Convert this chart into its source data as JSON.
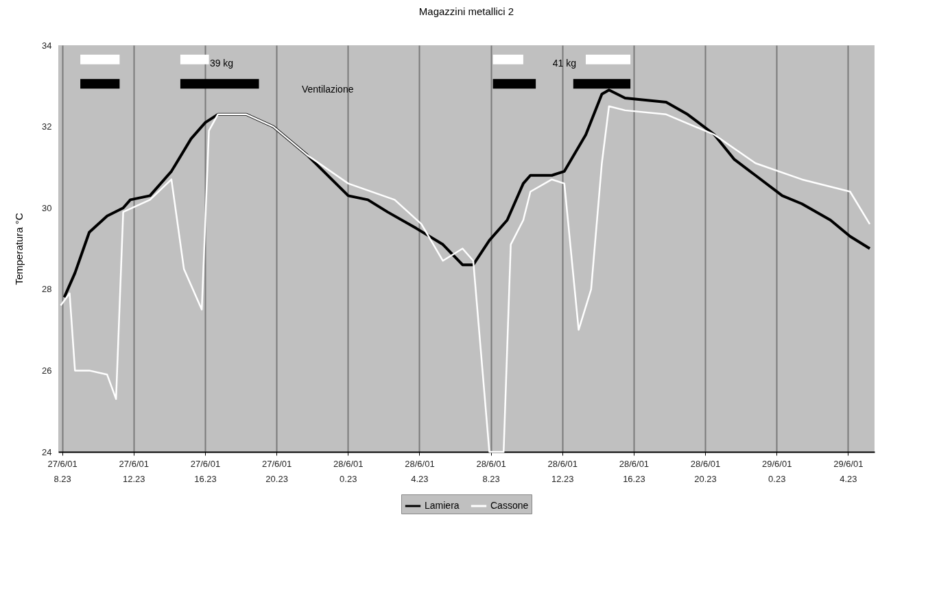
{
  "chart_data": {
    "type": "line",
    "title": "Magazzini metallici 2",
    "ylabel": "Temperatura °C",
    "xlim": [
      "--06-27T08:10",
      "--06-29T05:52"
    ],
    "ylim": [
      24,
      34
    ],
    "yticks": [
      24,
      26,
      28,
      30,
      32,
      34
    ],
    "xticks": [
      {
        "value": "2001-06-27T08:23",
        "label": "27/6/01 8.23"
      },
      {
        "value": "2001-06-27T12:23",
        "label": "27/6/01 12.23"
      },
      {
        "value": "2001-06-27T16:23",
        "label": "27/6/01 16.23"
      },
      {
        "value": "2001-06-27T20:23",
        "label": "27/6/01 20.23"
      },
      {
        "value": "2001-06-28T00:23",
        "label": "28/6/01 0.23"
      },
      {
        "value": "2001-06-28T04:23",
        "label": "28/6/01 4.23"
      },
      {
        "value": "2001-06-28T08:23",
        "label": "28/6/01 8.23"
      },
      {
        "value": "2001-06-28T12:23",
        "label": "28/6/01 12.23"
      },
      {
        "value": "2001-06-28T16:23",
        "label": "28/6/01 16.23"
      },
      {
        "value": "2001-06-28T20:23",
        "label": "28/6/01 20.23"
      },
      {
        "value": "2001-06-29T00:23",
        "label": "29/6/01 0.23"
      },
      {
        "value": "2001-06-29T04:23",
        "label": "29/6/01 4.23"
      }
    ],
    "grid": "x",
    "legend": "bottom",
    "marker": "none",
    "line_style": "solid",
    "series": [
      {
        "name": "Lamiera",
        "color": "#000000",
        "x": [
          "2001-06-27T08:30",
          "2001-06-27T09:06",
          "2001-06-27T09:54",
          "2001-06-27T10:54",
          "2001-06-27T11:48",
          "2001-06-27T12:12",
          "2001-06-27T13:18",
          "2001-06-27T14:30",
          "2001-06-27T15:36",
          "2001-06-27T16:24",
          "2001-06-27T17:06",
          "2001-06-27T18:42",
          "2001-06-27T20:12",
          "2001-06-27T22:06",
          "2001-06-28T00:24",
          "2001-06-28T01:30",
          "2001-06-28T02:36",
          "2001-06-28T04:12",
          "2001-06-28T05:42",
          "2001-06-28T06:48",
          "2001-06-28T07:24",
          "2001-06-28T08:18",
          "2001-06-28T09:18",
          "2001-06-28T10:12",
          "2001-06-28T10:36",
          "2001-06-28T11:48",
          "2001-06-28T12:30",
          "2001-06-28T13:42",
          "2001-06-28T14:36",
          "2001-06-28T15:00",
          "2001-06-28T15:54",
          "2001-06-28T18:12",
          "2001-06-28T19:24",
          "2001-06-28T20:54",
          "2001-06-28T22:00",
          "2001-06-28T23:12",
          "2001-06-29T00:42",
          "2001-06-29T01:48",
          "2001-06-29T03:24",
          "2001-06-29T04:30",
          "2001-06-29T05:36"
        ],
        "values": [
          27.8,
          28.4,
          29.4,
          29.8,
          30.0,
          30.2,
          30.3,
          30.9,
          31.7,
          32.1,
          32.3,
          32.3,
          32.0,
          31.3,
          30.3,
          30.2,
          29.9,
          29.5,
          29.1,
          28.6,
          28.6,
          29.2,
          29.7,
          30.6,
          30.8,
          30.8,
          30.9,
          31.8,
          32.8,
          32.9,
          32.7,
          32.6,
          32.3,
          31.8,
          31.2,
          30.8,
          30.3,
          30.1,
          29.7,
          29.3,
          29.0
        ]
      },
      {
        "name": "Cassone",
        "color": "#ffffff",
        "x": [
          "2001-06-27T08:18",
          "2001-06-27T08:48",
          "2001-06-27T09:06",
          "2001-06-27T09:54",
          "2001-06-27T10:54",
          "2001-06-27T11:24",
          "2001-06-27T11:48",
          "2001-06-27T13:18",
          "2001-06-27T14:30",
          "2001-06-27T15:12",
          "2001-06-27T16:12",
          "2001-06-27T16:36",
          "2001-06-27T17:06",
          "2001-06-27T18:42",
          "2001-06-27T20:12",
          "2001-06-27T22:06",
          "2001-06-28T00:24",
          "2001-06-28T03:00",
          "2001-06-28T04:30",
          "2001-06-28T05:42",
          "2001-06-28T06:48",
          "2001-06-28T07:24",
          "2001-06-28T08:18",
          "2001-06-28T09:06",
          "2001-06-28T09:30",
          "2001-06-28T10:12",
          "2001-06-28T10:36",
          "2001-06-28T11:48",
          "2001-06-28T12:30",
          "2001-06-28T13:18",
          "2001-06-28T14:00",
          "2001-06-28T14:36",
          "2001-06-28T15:00",
          "2001-06-28T15:54",
          "2001-06-28T18:12",
          "2001-06-28T20:54",
          "2001-06-28T23:12",
          "2001-06-29T01:48",
          "2001-06-29T04:30",
          "2001-06-29T05:36"
        ],
        "values": [
          27.6,
          27.9,
          26.0,
          26.0,
          25.9,
          25.3,
          29.9,
          30.2,
          30.7,
          28.5,
          27.5,
          31.9,
          32.3,
          32.3,
          32.0,
          31.3,
          30.6,
          30.2,
          29.6,
          28.7,
          29.0,
          28.7,
          24.0,
          24.0,
          29.1,
          29.7,
          30.4,
          30.7,
          30.6,
          27.0,
          28.0,
          31.1,
          32.5,
          32.4,
          32.3,
          31.8,
          31.1,
          30.7,
          30.4,
          29.6
        ]
      },
      {
        "type": "line",
        "color": "#ffffff",
        "x": [
          "2001-06-27T09:24",
          "2001-06-27T11:36",
          "2001-06-27T11:37",
          "2001-06-27T15:00",
          "2001-06-27T16:36",
          "2001-06-27T16:37",
          "2001-06-28T08:30",
          "2001-06-28T10:12",
          "2001-06-28T10:13",
          "2001-06-28T13:42",
          "2001-06-28T16:12"
        ],
        "values": [
          33.65,
          33.65,
          null,
          33.65,
          33.65,
          null,
          33.65,
          33.65,
          null,
          33.65,
          33.65
        ]
      },
      {
        "type": "line",
        "color": "#000000",
        "x": [
          "2001-06-27T09:24",
          "2001-06-27T11:36",
          "2001-06-27T11:37",
          "2001-06-27T15:00",
          "2001-06-27T19:24",
          "2001-06-27T19:25",
          "2001-06-28T08:30",
          "2001-06-28T10:54",
          "2001-06-28T10:55",
          "2001-06-28T13:00",
          "2001-06-28T16:12"
        ],
        "values": [
          33.05,
          33.05,
          null,
          33.05,
          33.05,
          null,
          33.05,
          33.05,
          null,
          33.05,
          33.05
        ]
      }
    ],
    "annotations": [
      "39 kg",
      "41 kg",
      "Ventilazione"
    ]
  }
}
